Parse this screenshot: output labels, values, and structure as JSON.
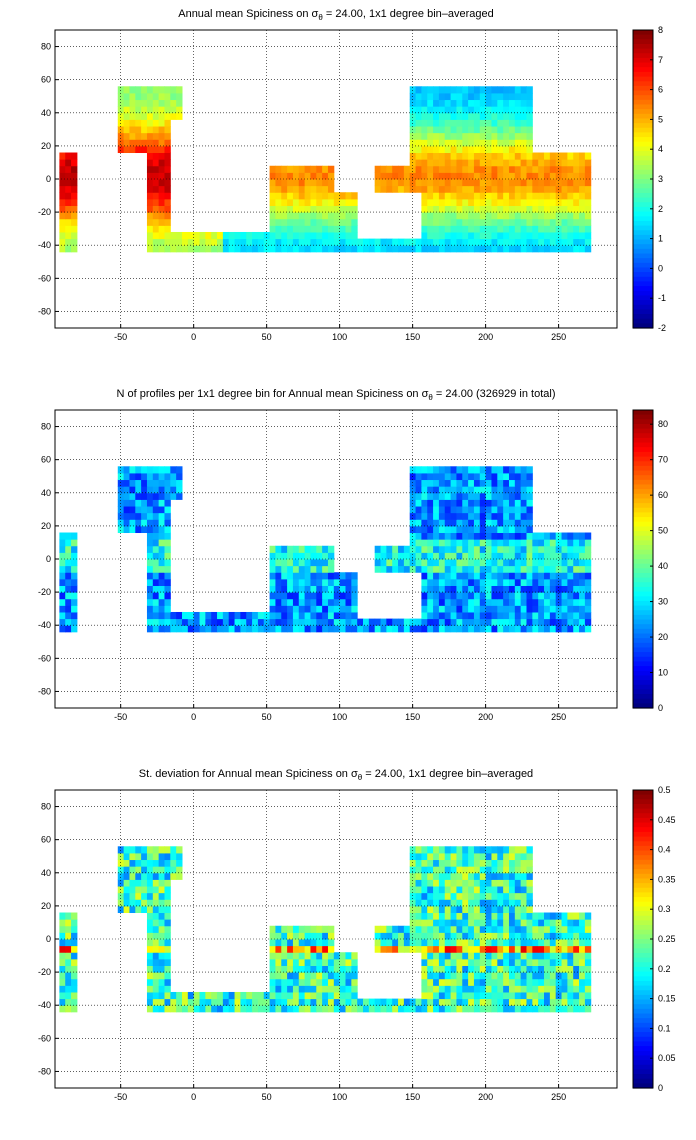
{
  "chart_data": [
    {
      "type": "heatmap",
      "title_prefix": "Annual mean Spiciness on ",
      "title_symbol": "σ",
      "title_sub": "θ",
      "title_suffix": " = 24.00, 1x1 degree bin–averaged",
      "x_ticks": [
        "-50",
        "0",
        "50",
        "100",
        "150",
        "200",
        "250"
      ],
      "x_tick_values": [
        -50,
        0,
        50,
        100,
        150,
        200,
        250
      ],
      "y_ticks": [
        "80",
        "60",
        "40",
        "20",
        "0",
        "-20",
        "-40",
        "-60",
        "-80"
      ],
      "y_tick_values": [
        80,
        60,
        40,
        20,
        0,
        -20,
        -40,
        -60,
        -80
      ],
      "xlim": [
        -95,
        290
      ],
      "ylim": [
        -90,
        90
      ],
      "grid": true,
      "colorbar": {
        "ticks": [
          "8",
          "7",
          "6",
          "5",
          "4",
          "3",
          "2",
          "1",
          "0",
          "-1",
          "-2"
        ],
        "tick_values": [
          8,
          7,
          6,
          5,
          4,
          3,
          2,
          1,
          0,
          -1,
          -2
        ],
        "range": [
          -2,
          8
        ]
      },
      "colormap": "jet"
    },
    {
      "type": "heatmap",
      "title_prefix": "N of profiles per 1x1 degree bin for Annual mean Spiciness on ",
      "title_symbol": "σ",
      "title_sub": "θ",
      "title_suffix": " = 24.00 (326929 in total)",
      "total_profiles": 326929,
      "x_ticks": [
        "-50",
        "0",
        "50",
        "100",
        "150",
        "200",
        "250"
      ],
      "x_tick_values": [
        -50,
        0,
        50,
        100,
        150,
        200,
        250
      ],
      "y_ticks": [
        "80",
        "60",
        "40",
        "20",
        "0",
        "-20",
        "-40",
        "-60",
        "-80"
      ],
      "y_tick_values": [
        80,
        60,
        40,
        20,
        0,
        -20,
        -40,
        -60,
        -80
      ],
      "xlim": [
        -95,
        290
      ],
      "ylim": [
        -90,
        90
      ],
      "grid": true,
      "colorbar": {
        "ticks": [
          "80",
          "70",
          "60",
          "50",
          "40",
          "30",
          "20",
          "10",
          "0"
        ],
        "tick_values": [
          80,
          70,
          60,
          50,
          40,
          30,
          20,
          10,
          0
        ],
        "range": [
          0,
          84
        ]
      },
      "colormap": "jet"
    },
    {
      "type": "heatmap",
      "title_prefix": "St. deviation for Annual mean Spiciness on ",
      "title_symbol": "σ",
      "title_sub": "θ",
      "title_suffix": " = 24.00, 1x1 degree bin–averaged",
      "x_ticks": [
        "-50",
        "0",
        "50",
        "100",
        "150",
        "200",
        "250"
      ],
      "x_tick_values": [
        -50,
        0,
        50,
        100,
        150,
        200,
        250
      ],
      "y_ticks": [
        "80",
        "60",
        "40",
        "20",
        "0",
        "-20",
        "-40",
        "-60",
        "-80"
      ],
      "y_tick_values": [
        80,
        60,
        40,
        20,
        0,
        -20,
        -40,
        -60,
        -80
      ],
      "xlim": [
        -95,
        290
      ],
      "ylim": [
        -90,
        90
      ],
      "grid": true,
      "colorbar": {
        "ticks": [
          "0.5",
          "0.45",
          "0.4",
          "0.35",
          "0.3",
          "0.25",
          "0.2",
          "0.15",
          "0.1",
          "0.05",
          "0"
        ],
        "tick_values": [
          0.5,
          0.45,
          0.4,
          0.35,
          0.3,
          0.25,
          0.2,
          0.15,
          0.1,
          0.05,
          0
        ],
        "range": [
          0,
          0.5
        ]
      },
      "colormap": "jet"
    }
  ]
}
